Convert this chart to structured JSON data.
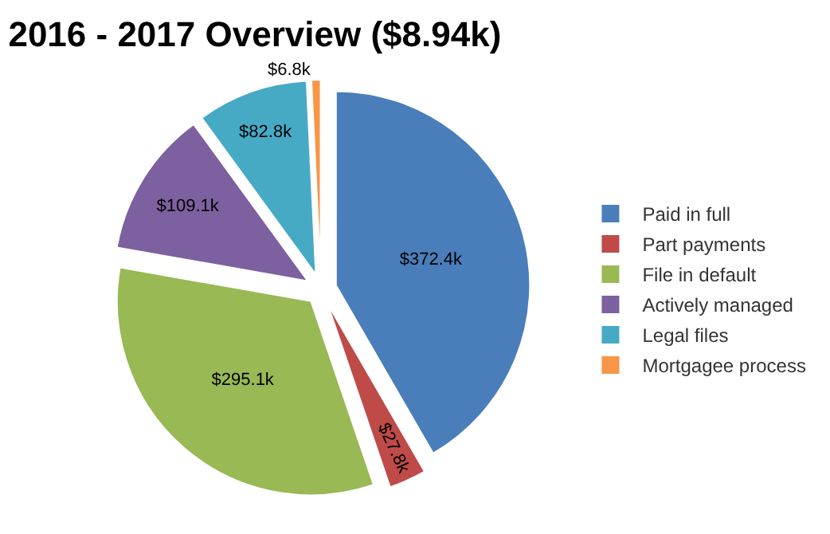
{
  "chart_data": {
    "type": "pie",
    "title": "2016 - 2017 Overview ($8.94k)",
    "categories": [
      "Paid in full",
      "Part payments",
      "File in default",
      "Actively managed",
      "Legal files",
      "Mortgagee process"
    ],
    "values": [
      372.4,
      27.8,
      295.1,
      109.1,
      82.8,
      6.8
    ],
    "value_labels": [
      "$372.4k",
      "$27.8k",
      "$295.1k",
      "$109.1k",
      "$82.8k",
      "$6.8k"
    ],
    "colors": [
      "#4a7ebb",
      "#be4b48",
      "#98b954",
      "#7d60a0",
      "#46aac5",
      "#f79646"
    ],
    "legend": "right"
  }
}
